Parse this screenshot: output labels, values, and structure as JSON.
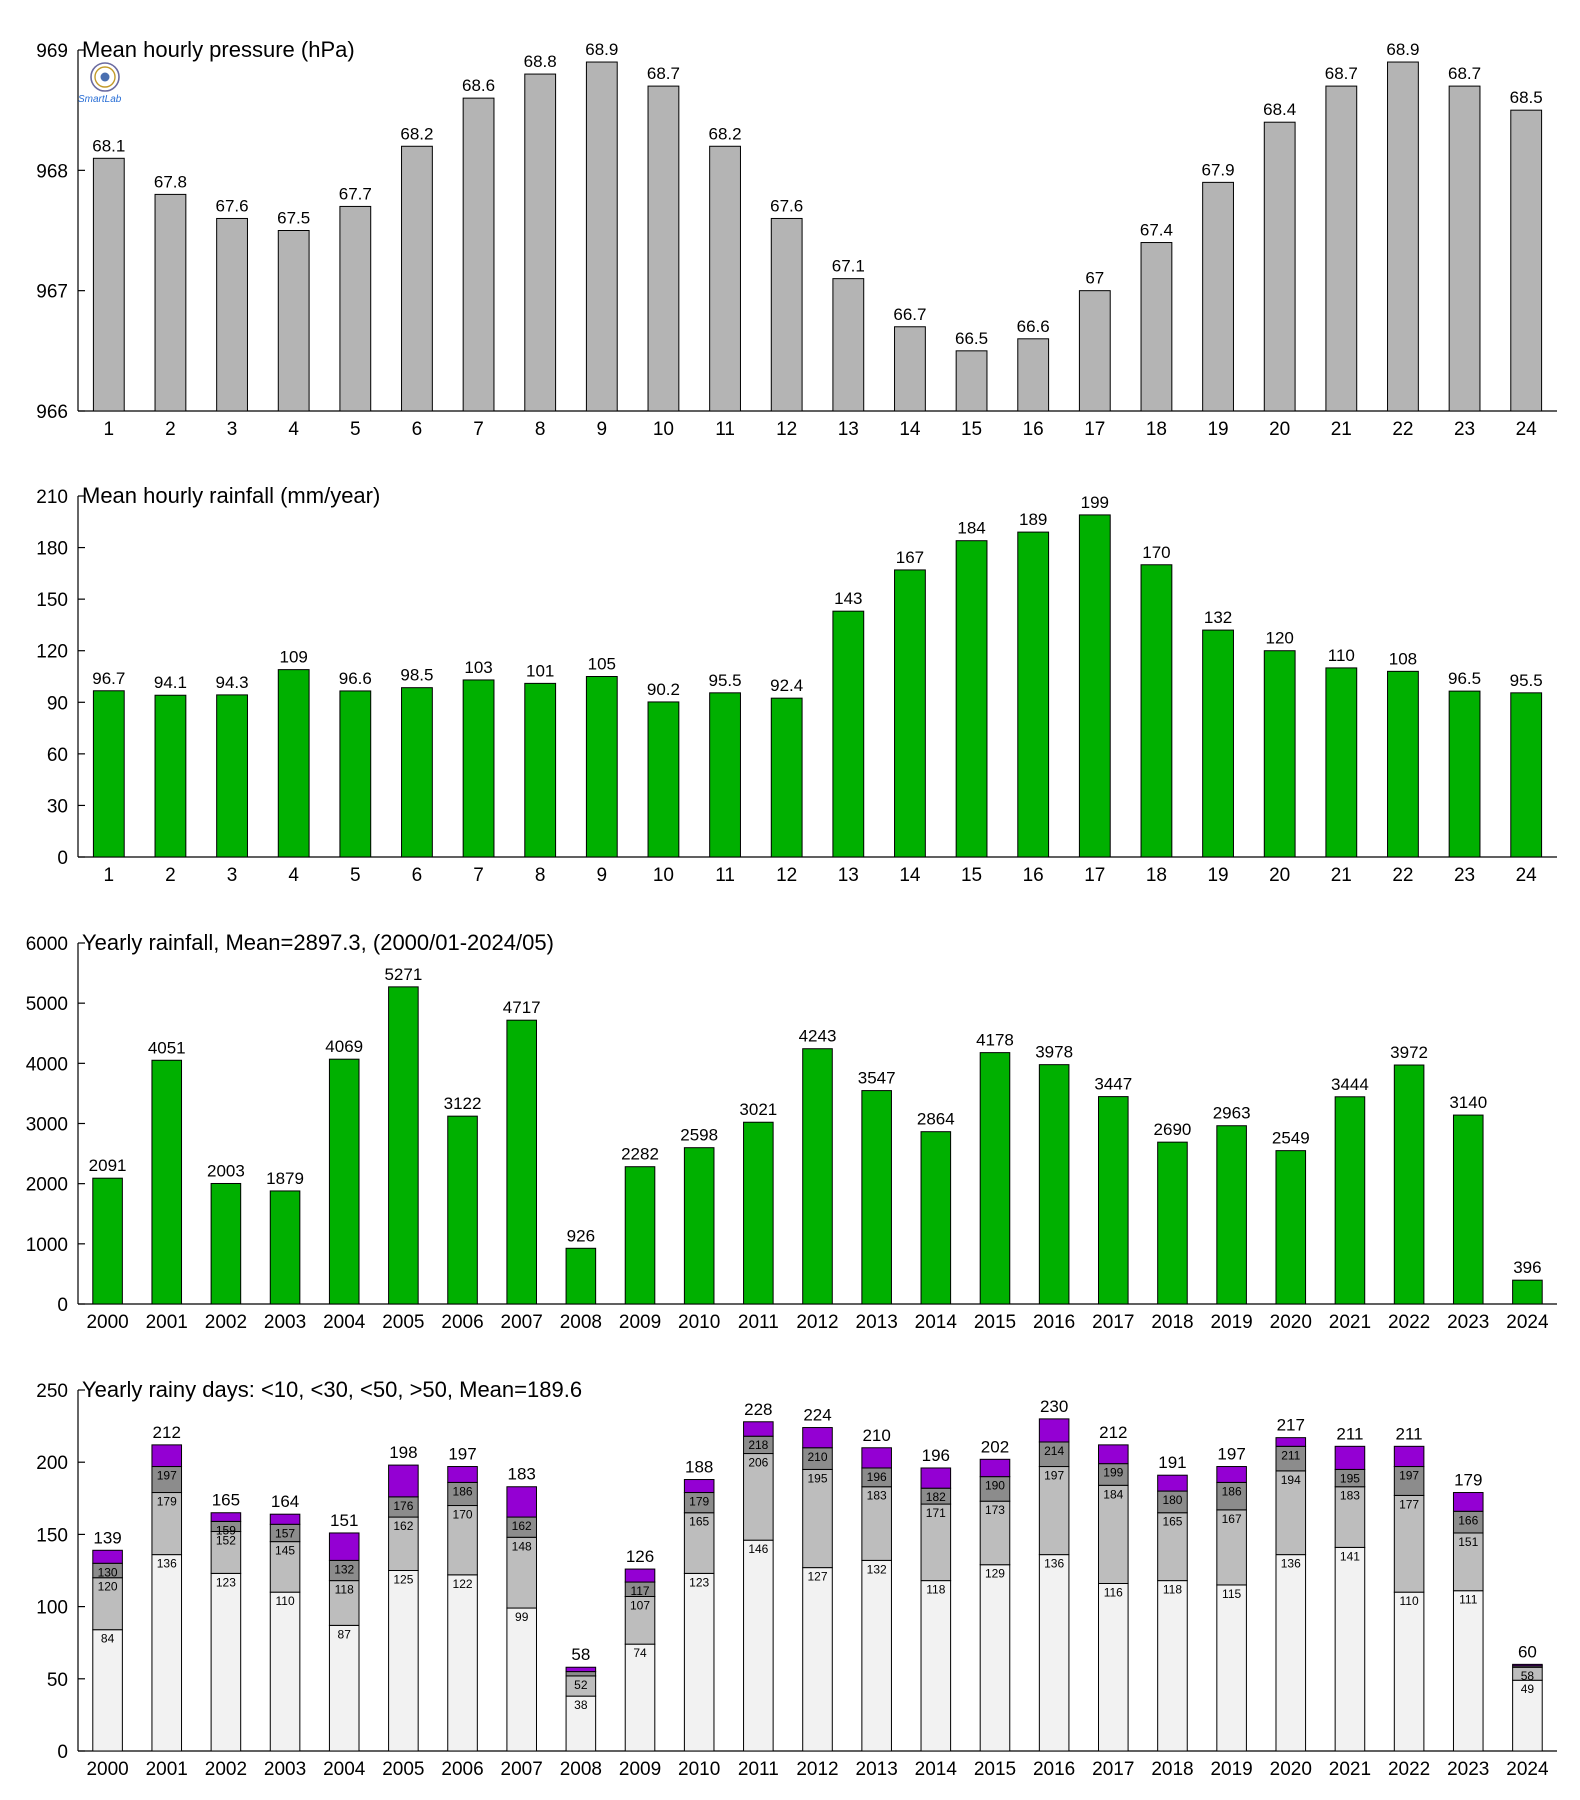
{
  "logo": {
    "icon": "seal-logo-icon",
    "text": "SmartLab"
  },
  "chart_data": [
    {
      "id": "pressure",
      "type": "bar",
      "title": "Mean hourly pressure (hPa)",
      "categories": [
        "1",
        "2",
        "3",
        "4",
        "5",
        "6",
        "7",
        "8",
        "9",
        "10",
        "11",
        "12",
        "13",
        "14",
        "15",
        "16",
        "17",
        "18",
        "19",
        "20",
        "21",
        "22",
        "23",
        "24"
      ],
      "values": [
        968.1,
        967.8,
        967.6,
        967.5,
        967.7,
        968.2,
        968.6,
        968.8,
        968.9,
        968.7,
        968.2,
        967.6,
        967.1,
        966.7,
        966.5,
        966.6,
        967.0,
        967.4,
        967.9,
        968.4,
        968.7,
        968.9,
        968.7,
        968.5
      ],
      "value_labels": [
        "68.1",
        "67.8",
        "67.6",
        "67.5",
        "67.7",
        "68.2",
        "68.6",
        "68.8",
        "68.9",
        "68.7",
        "68.2",
        "67.6",
        "67.1",
        "66.7",
        "66.5",
        "66.6",
        "67",
        "67.4",
        "67.9",
        "68.4",
        "68.7",
        "68.9",
        "68.7",
        "68.5"
      ],
      "ylim": [
        966,
        969
      ],
      "yticks": [
        966,
        967,
        968,
        969
      ],
      "color": "#b4b4b4"
    },
    {
      "id": "hourly-rain",
      "type": "bar",
      "title": "Mean hourly rainfall (mm/year)",
      "categories": [
        "1",
        "2",
        "3",
        "4",
        "5",
        "6",
        "7",
        "8",
        "9",
        "10",
        "11",
        "12",
        "13",
        "14",
        "15",
        "16",
        "17",
        "18",
        "19",
        "20",
        "21",
        "22",
        "23",
        "24"
      ],
      "values": [
        96.7,
        94.1,
        94.3,
        109,
        96.6,
        98.5,
        103,
        101,
        105,
        90.2,
        95.5,
        92.4,
        143,
        167,
        184,
        189,
        199,
        170,
        132,
        120,
        110,
        108,
        96.5,
        95.5
      ],
      "value_labels": [
        "96.7",
        "94.1",
        "94.3",
        "109",
        "96.6",
        "98.5",
        "103",
        "101",
        "105",
        "90.2",
        "95.5",
        "92.4",
        "143",
        "167",
        "184",
        "189",
        "199",
        "170",
        "132",
        "120",
        "110",
        "108",
        "96.5",
        "95.5"
      ],
      "ylim": [
        0,
        210
      ],
      "yticks": [
        0,
        30,
        60,
        90,
        120,
        150,
        180,
        210
      ],
      "color": "#00b000"
    },
    {
      "id": "yearly-rain",
      "type": "bar",
      "title": "Yearly rainfall, Mean=2897.3, (2000/01-2024/05)",
      "categories": [
        "2000",
        "2001",
        "2002",
        "2003",
        "2004",
        "2005",
        "2006",
        "2007",
        "2008",
        "2009",
        "2010",
        "2011",
        "2012",
        "2013",
        "2014",
        "2015",
        "2016",
        "2017",
        "2018",
        "2019",
        "2020",
        "2021",
        "2022",
        "2023",
        "2024"
      ],
      "values": [
        2091,
        4051,
        2003,
        1879,
        4069,
        5271,
        3122,
        4717,
        926,
        2282,
        2598,
        3021,
        4243,
        3547,
        2864,
        4178,
        3978,
        3447,
        2690,
        2963,
        2549,
        3444,
        3972,
        3140,
        396
      ],
      "value_labels": [
        "2091",
        "4051",
        "2003",
        "1879",
        "4069",
        "5271",
        "3122",
        "4717",
        "926",
        "2282",
        "2598",
        "3021",
        "4243",
        "3547",
        "2864",
        "4178",
        "3978",
        "3447",
        "2690",
        "2963",
        "2549",
        "3444",
        "3972",
        "3140",
        "396"
      ],
      "ylim": [
        0,
        6000
      ],
      "yticks": [
        0,
        1000,
        2000,
        3000,
        4000,
        5000,
        6000
      ],
      "color": "#00b000"
    },
    {
      "id": "rainy-days",
      "type": "stacked-bar",
      "title": "Yearly rainy days: <10, <30, <50, >50, Mean=189.6",
      "categories": [
        "2000",
        "2001",
        "2002",
        "2003",
        "2004",
        "2005",
        "2006",
        "2007",
        "2008",
        "2009",
        "2010",
        "2011",
        "2012",
        "2013",
        "2014",
        "2015",
        "2016",
        "2017",
        "2018",
        "2019",
        "2020",
        "2021",
        "2022",
        "2023",
        "2024"
      ],
      "lt10": [
        84,
        136,
        123,
        110,
        87,
        125,
        122,
        99,
        38,
        74,
        123,
        146,
        127,
        132,
        118,
        129,
        136,
        116,
        118,
        115,
        136,
        141,
        110,
        111,
        49
      ],
      "lt30": [
        120,
        179,
        152,
        145,
        118,
        162,
        170,
        148,
        52,
        107,
        165,
        206,
        195,
        183,
        171,
        173,
        197,
        184,
        165,
        167,
        194,
        183,
        177,
        151,
        58
      ],
      "lt50": [
        130,
        197,
        159,
        157,
        132,
        176,
        186,
        162,
        55,
        117,
        179,
        218,
        210,
        196,
        182,
        190,
        214,
        199,
        180,
        186,
        211,
        195,
        197,
        166,
        59
      ],
      "total": [
        139,
        212,
        165,
        164,
        151,
        198,
        197,
        183,
        58,
        126,
        188,
        228,
        224,
        210,
        196,
        202,
        230,
        212,
        191,
        197,
        217,
        211,
        211,
        179,
        60
      ],
      "lt10_labels": [
        "84",
        "136",
        "123",
        "110",
        "87",
        "125",
        "122",
        "99",
        "38",
        "74",
        "123",
        "146",
        "127",
        "132",
        "118",
        "129",
        "136",
        "116",
        "118",
        "115",
        "136",
        "141",
        "110",
        "111",
        "49"
      ],
      "lt30_labels": [
        "120",
        "179",
        "152",
        "145",
        "118",
        "162",
        "170",
        "148",
        "52",
        "107",
        "165",
        "206",
        "195",
        "183",
        "171",
        "173",
        "197",
        "184",
        "165",
        "167",
        "194",
        "183",
        "177",
        "151",
        "58"
      ],
      "lt50_labels": [
        "130",
        "197",
        "159",
        "157",
        "132",
        "176",
        "186",
        "162",
        "",
        "117",
        "179",
        "218",
        "210",
        "196",
        "182",
        "190",
        "214",
        "199",
        "180",
        "186",
        "211",
        "195",
        "197",
        "166",
        ""
      ],
      "total_labels": [
        "139",
        "212",
        "165",
        "164",
        "151",
        "198",
        "197",
        "183",
        "58",
        "126",
        "188",
        "228",
        "224",
        "210",
        "196",
        "202",
        "230",
        "212",
        "191",
        "197",
        "217",
        "211",
        "211",
        "179",
        "60"
      ],
      "ylim": [
        0,
        250
      ],
      "yticks": [
        0,
        50,
        100,
        150,
        200,
        250
      ],
      "colors": {
        "lt10": "#f2f2f2",
        "lt30": "#bdbdbd",
        "lt50": "#8c8c8c",
        "gt50": "#9400d3"
      }
    }
  ]
}
